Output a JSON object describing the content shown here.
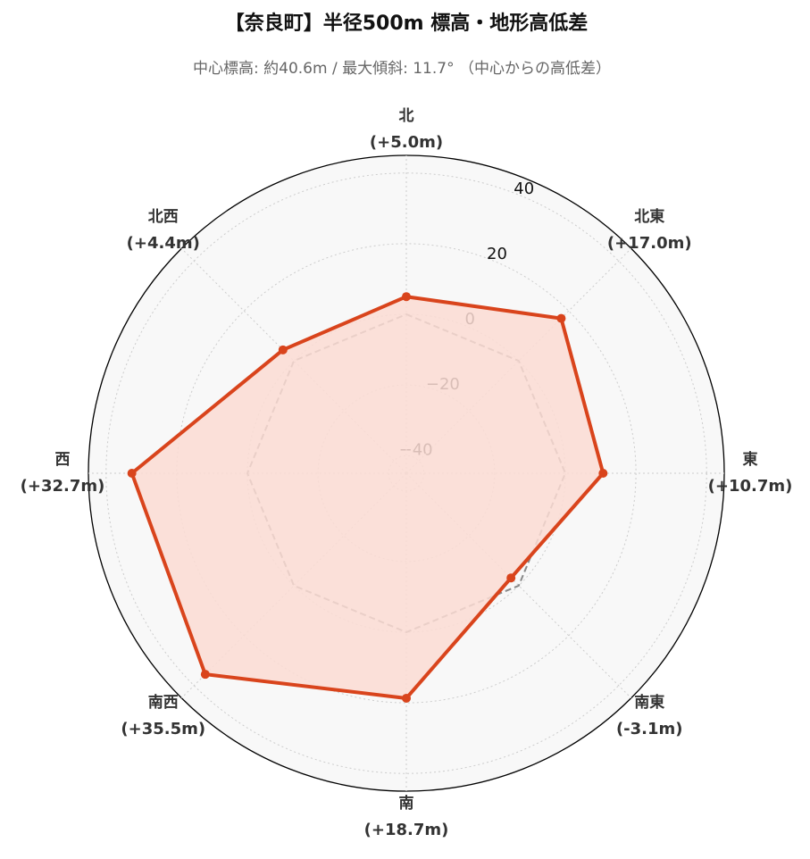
{
  "chart_data": {
    "type": "radar",
    "title": "【奈良町】半径500m 標高・地形高低差",
    "subtitle": "中心標高: 約40.6m / 最大傾斜: 11.7° （中心からの高低差）",
    "categories": [
      "北",
      "北東",
      "東",
      "南東",
      "南",
      "南西",
      "西",
      "北西"
    ],
    "series": [
      {
        "values": [
          5.0,
          17.0,
          10.7,
          -3.1,
          18.7,
          35.5,
          32.7,
          4.4
        ],
        "value_labels": [
          "(+5.0m)",
          "(+17.0m)",
          "(+10.7m)",
          "(-3.1m)",
          "(+18.7m)",
          "(+35.5m)",
          "(+32.7m)",
          "(+4.4m)"
        ],
        "color": "#d9441c",
        "fill": "#fcdcd4"
      }
    ],
    "ylim": [
      -45,
      45
    ],
    "yticks": [
      {
        "value": -40,
        "label": "−40"
      },
      {
        "value": -20,
        "label": "−20"
      },
      0,
      20,
      40
    ],
    "baseline": 0,
    "baseline_color": "#888888",
    "grid": true
  }
}
